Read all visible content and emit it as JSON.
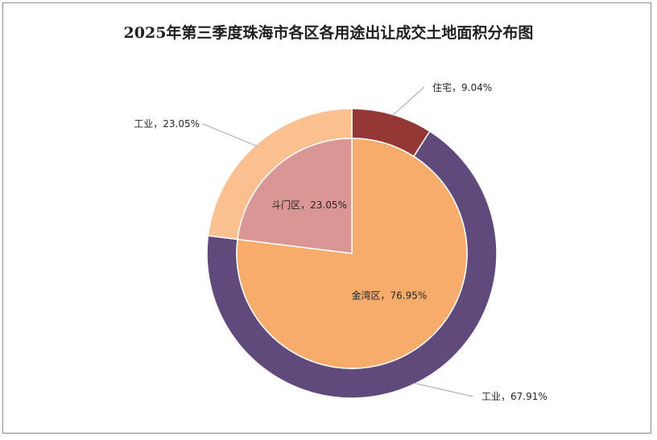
{
  "chart_data": {
    "type": "pie",
    "subtype": "nested-donut",
    "title": "2025年第三季度珠海市各区各用途出让成交土地面积分布图",
    "inner": {
      "slices": [
        {
          "name": "金湾区",
          "value": 76.95,
          "label": "金湾区，76.95%",
          "color": "#f7ac6b"
        },
        {
          "name": "斗门区",
          "value": 23.05,
          "label": "斗门区，23.05%",
          "color": "#d99694"
        }
      ]
    },
    "outer": {
      "slices": [
        {
          "name": "住宅",
          "value": 9.04,
          "label": "住宅，9.04%",
          "color": "#953735"
        },
        {
          "name": "工业",
          "value": 67.91,
          "label": "工业，67.91%",
          "color": "#604a7b"
        },
        {
          "name": "工业",
          "value": 23.05,
          "label": "工业，23.05%",
          "color": "#fac090"
        }
      ]
    }
  }
}
